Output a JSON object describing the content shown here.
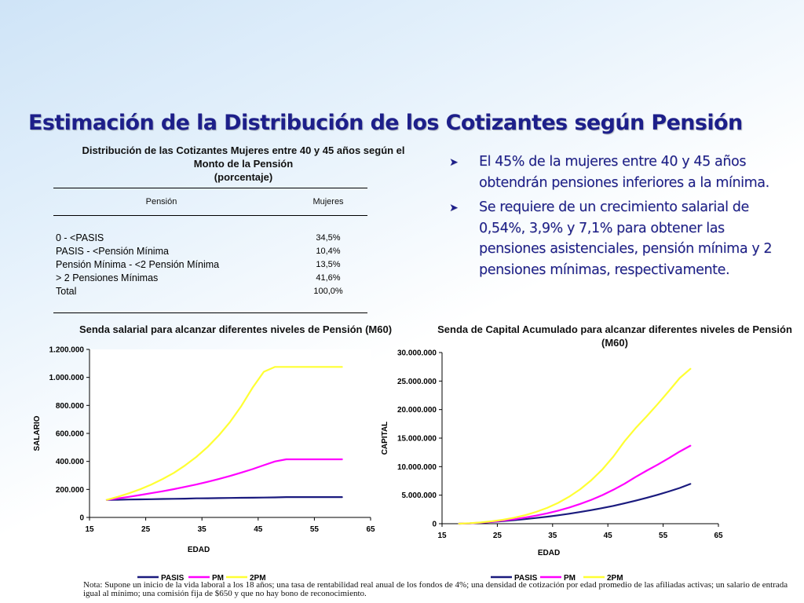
{
  "title": "Estimación de la Distribución de los Cotizantes según Pensión",
  "table": {
    "title_lines": [
      "Distribución de las Cotizantes Mujeres entre 40 y 45 años según el",
      "Monto de la Pensión",
      "(porcentaje)"
    ],
    "headers": [
      "Pensión",
      "Mujeres"
    ],
    "rows": [
      {
        "label": "0 - <PASIS",
        "value": "34,5%"
      },
      {
        "label": "PASIS - <Pensión Mínima",
        "value": "10,4%"
      },
      {
        "label": "Pensión Mínima - <2 Pensión Mínima",
        "value": "13,5%"
      },
      {
        "label": "> 2 Pensiones Mínimas",
        "value": "41,6%"
      },
      {
        "label": "Total",
        "value": "100,0%"
      }
    ]
  },
  "bullets": [
    "El 45% de la mujeres entre 40 y 45 años obtendrán pensiones inferiores a la mínima.",
    "Se requiere de un crecimiento salarial de 0,54%, 3,9% y 7,1% para obtener las pensiones asistenciales, pensión mínima y 2 pensiones mínimas, respectivamente."
  ],
  "series_colors": {
    "PASIS": "#1a1a7e",
    "PM": "#ff00ff",
    "2PM": "#ffff33"
  },
  "chart_data": [
    {
      "type": "line",
      "title": "Senda salarial para alcanzar diferentes niveles de Pensión (M60)",
      "xlabel": "EDAD",
      "ylabel": "SALARIO",
      "xlim": [
        15,
        65
      ],
      "ylim": [
        0,
        1200000
      ],
      "x_ticks": [
        "15",
        "25",
        "35",
        "45",
        "55",
        "65"
      ],
      "y_ticks": [
        "0",
        "200.000",
        "400.000",
        "600.000",
        "800.000",
        "1.000.000",
        "1.200.000"
      ],
      "legend": "bottom",
      "x": [
        18,
        20,
        22,
        24,
        26,
        28,
        30,
        32,
        34,
        36,
        38,
        40,
        42,
        44,
        46,
        48,
        50,
        52,
        54,
        56,
        58,
        60
      ],
      "series": [
        {
          "name": "PASIS",
          "values": [
            125000,
            126000,
            128000,
            129000,
            130000,
            132000,
            133000,
            134000,
            136000,
            137000,
            138000,
            139000,
            140000,
            141000,
            142000,
            143000,
            145000,
            145000,
            145000,
            145000,
            145000,
            145000
          ]
        },
        {
          "name": "PM",
          "values": [
            125000,
            135000,
            147000,
            160000,
            173000,
            187000,
            202000,
            218000,
            235000,
            254000,
            274000,
            296000,
            320000,
            345000,
            373000,
            400000,
            415000,
            415000,
            415000,
            415000,
            415000,
            415000
          ]
        },
        {
          "name": "2PM",
          "values": [
            125000,
            147000,
            172000,
            201000,
            235000,
            274000,
            318000,
            371000,
            432000,
            503000,
            586000,
            682000,
            795000,
            926000,
            1040000,
            1075000,
            1075000,
            1075000,
            1075000,
            1075000,
            1075000,
            1075000
          ]
        }
      ]
    },
    {
      "type": "line",
      "title": "Senda de Capital Acumulado para alcanzar diferentes niveles de Pensión (M60)",
      "xlabel": "EDAD",
      "ylabel": "CAPITAL",
      "xlim": [
        15,
        65
      ],
      "ylim": [
        0,
        30000000
      ],
      "x_ticks": [
        "15",
        "25",
        "35",
        "45",
        "55",
        "65"
      ],
      "y_ticks": [
        "0",
        "5.000.000",
        "10.000.000",
        "15.000.000",
        "20.000.000",
        "25.000.000",
        "30.000.000"
      ],
      "legend": "bottom",
      "x": [
        18,
        20,
        22,
        24,
        26,
        28,
        30,
        32,
        34,
        36,
        38,
        40,
        42,
        44,
        46,
        48,
        50,
        52,
        54,
        56,
        58,
        60
      ],
      "series": [
        {
          "name": "PASIS",
          "values": [
            0,
            60000,
            170000,
            300000,
            450000,
            620000,
            800000,
            1000000,
            1220000,
            1470000,
            1750000,
            2050000,
            2380000,
            2740000,
            3130000,
            3560000,
            4030000,
            4530000,
            5060000,
            5640000,
            6260000,
            7000000
          ]
        },
        {
          "name": "PM",
          "values": [
            0,
            70000,
            190000,
            350000,
            550000,
            790000,
            1080000,
            1420000,
            1820000,
            2290000,
            2840000,
            3470000,
            4190000,
            5010000,
            5940000,
            6990000,
            8170000,
            9290000,
            10350000,
            11470000,
            12650000,
            13700000
          ]
        },
        {
          "name": "2PM",
          "values": [
            0,
            80000,
            220000,
            420000,
            690000,
            1040000,
            1490000,
            2060000,
            2770000,
            3650000,
            4730000,
            6040000,
            7620000,
            9510000,
            11760000,
            14420000,
            16730000,
            18800000,
            20960000,
            23200000,
            25530000,
            27200000
          ]
        }
      ]
    }
  ],
  "note": "Nota: Supone un inicio de la vida laboral a los 18 años; una tasa de rentabilidad real anual de los fondos de 4%; una densidad de cotización por edad promedio de las afiliadas activas; un salario de entrada igual al mínimo; una comisión fija de $650 y que no hay bono de reconocimiento."
}
